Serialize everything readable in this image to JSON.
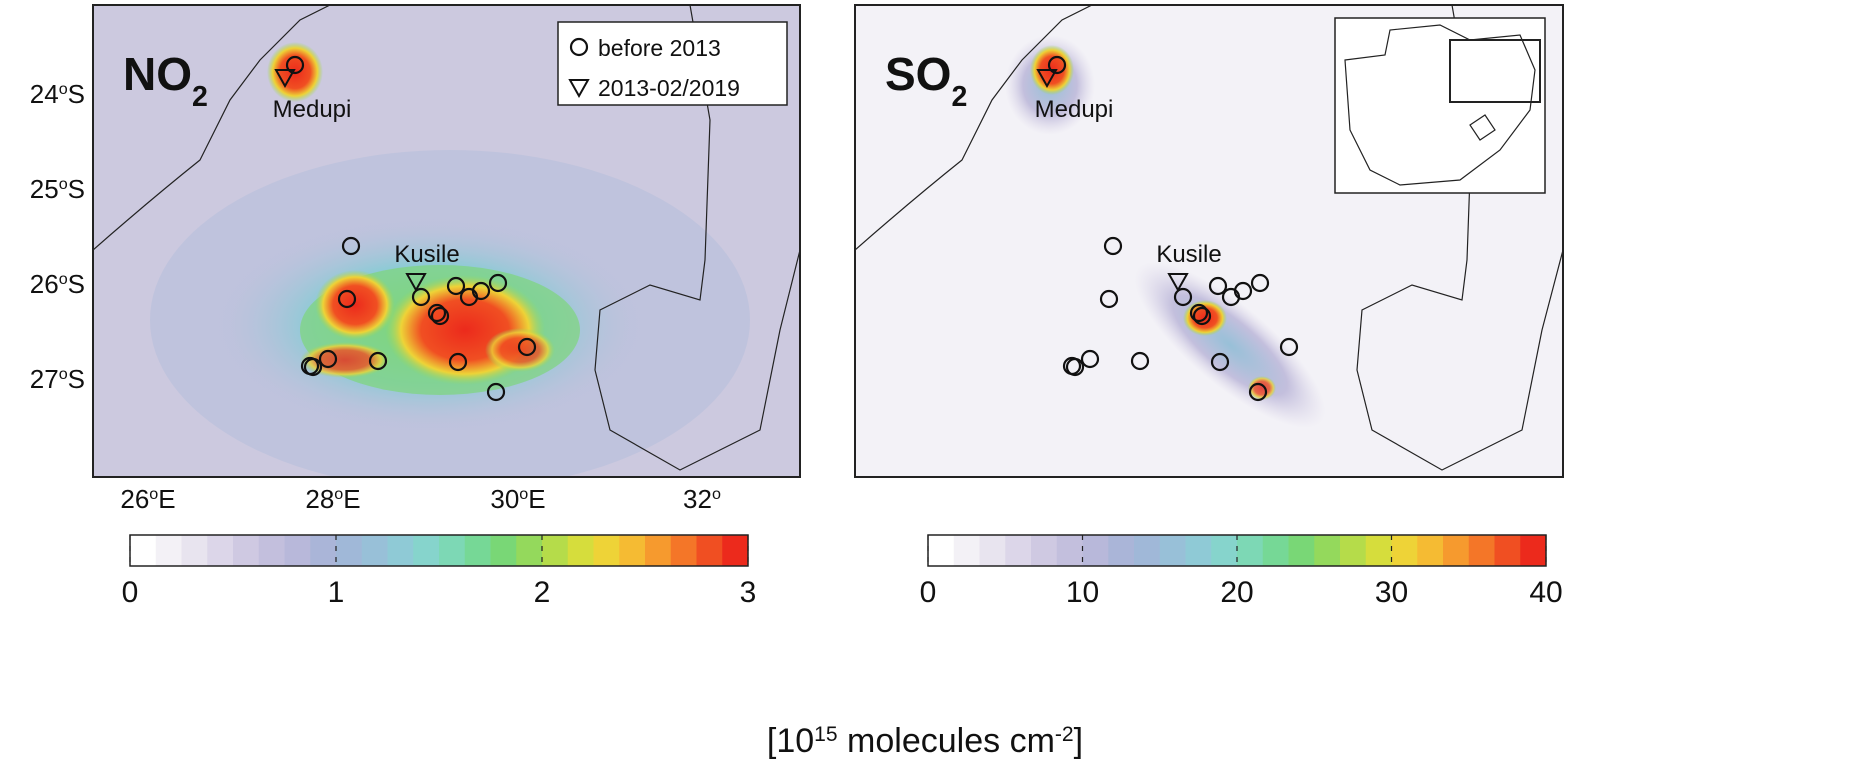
{
  "panels": [
    {
      "title": {
        "text": "NO",
        "sub": "2"
      },
      "sites": {
        "medupi": "Medupi",
        "kusile": "Kusile"
      },
      "legend": {
        "circle": "before 2013",
        "triangle": "2013-02/2019"
      },
      "lat_labels": [
        {
          "num": "24",
          "deg": "o",
          "hemi": "S"
        },
        {
          "num": "25",
          "deg": "o",
          "hemi": "S"
        },
        {
          "num": "26",
          "deg": "o",
          "hemi": "S"
        },
        {
          "num": "27",
          "deg": "o",
          "hemi": "S"
        }
      ],
      "lon_labels": [
        {
          "num": "26",
          "deg": "o",
          "hemi": "E"
        },
        {
          "num": "28",
          "deg": "o",
          "hemi": "E"
        },
        {
          "num": "30",
          "deg": "o",
          "hemi": "E"
        },
        {
          "num": "32",
          "deg": "o"
        }
      ],
      "colorbar": {
        "lim": [
          0,
          3
        ],
        "ticks": [
          0,
          1,
          2,
          3
        ]
      }
    },
    {
      "title": {
        "text": "SO",
        "sub": "2"
      },
      "sites": {
        "medupi": "Medupi",
        "kusile": "Kusile"
      },
      "colorbar": {
        "lim": [
          0,
          40
        ],
        "ticks": [
          0,
          10,
          20,
          30,
          40
        ]
      }
    }
  ],
  "colormap": [
    "#ffffff",
    "#f3f1f6",
    "#e8e4ef",
    "#dcd6e9",
    "#cfc9e2",
    "#c3bfdd",
    "#b8b8da",
    "#aab5d8",
    "#a0b8d8",
    "#98c0d8",
    "#8fcad6",
    "#86d4cc",
    "#7dd8b5",
    "#76d896",
    "#79d776",
    "#94d95c",
    "#b5dc4a",
    "#d6dd3c",
    "#eed337",
    "#f5bb33",
    "#f69a2e",
    "#f47628",
    "#f04f22",
    "#ec2a1c"
  ],
  "unit": {
    "pre": "[10",
    "exp1": "15",
    "mid": " molecules cm",
    "exp2": "-2",
    "post": "]"
  }
}
